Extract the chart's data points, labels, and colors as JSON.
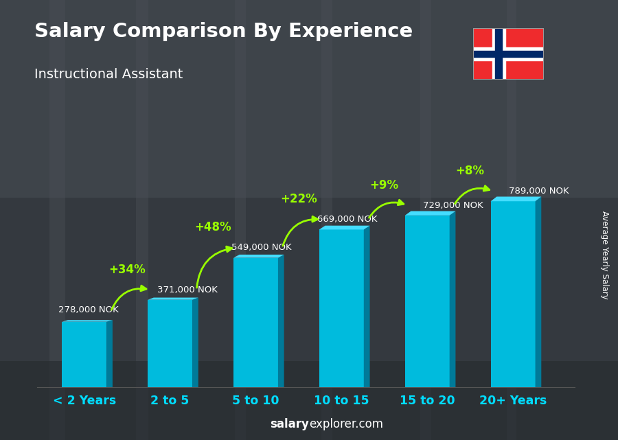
{
  "title": "Salary Comparison By Experience",
  "subtitle": "Instructional Assistant",
  "categories": [
    "< 2 Years",
    "2 to 5",
    "5 to 10",
    "10 to 15",
    "15 to 20",
    "20+ Years"
  ],
  "values": [
    278000,
    371000,
    549000,
    669000,
    729000,
    789000
  ],
  "value_labels": [
    "278,000 NOK",
    "371,000 NOK",
    "549,000 NOK",
    "669,000 NOK",
    "729,000 NOK",
    "789,000 NOK"
  ],
  "pct_labels": [
    "+34%",
    "+48%",
    "+22%",
    "+9%",
    "+8%"
  ],
  "bar_color_front": "#00BBDD",
  "bar_color_right": "#007A99",
  "bar_color_top": "#44DDFF",
  "title_color": "#FFFFFF",
  "subtitle_color": "#FFFFFF",
  "value_color": "#FFFFFF",
  "pct_color": "#99FF00",
  "xlabel_color": "#00DDFF",
  "footer_bold": "salary",
  "footer_normal": "explorer.com",
  "ylabel_text": "Average Yearly Salary",
  "bg_color": "#5a6068",
  "flag_red": "#EF2B2D",
  "flag_blue": "#002868",
  "flag_white": "#FFFFFF"
}
